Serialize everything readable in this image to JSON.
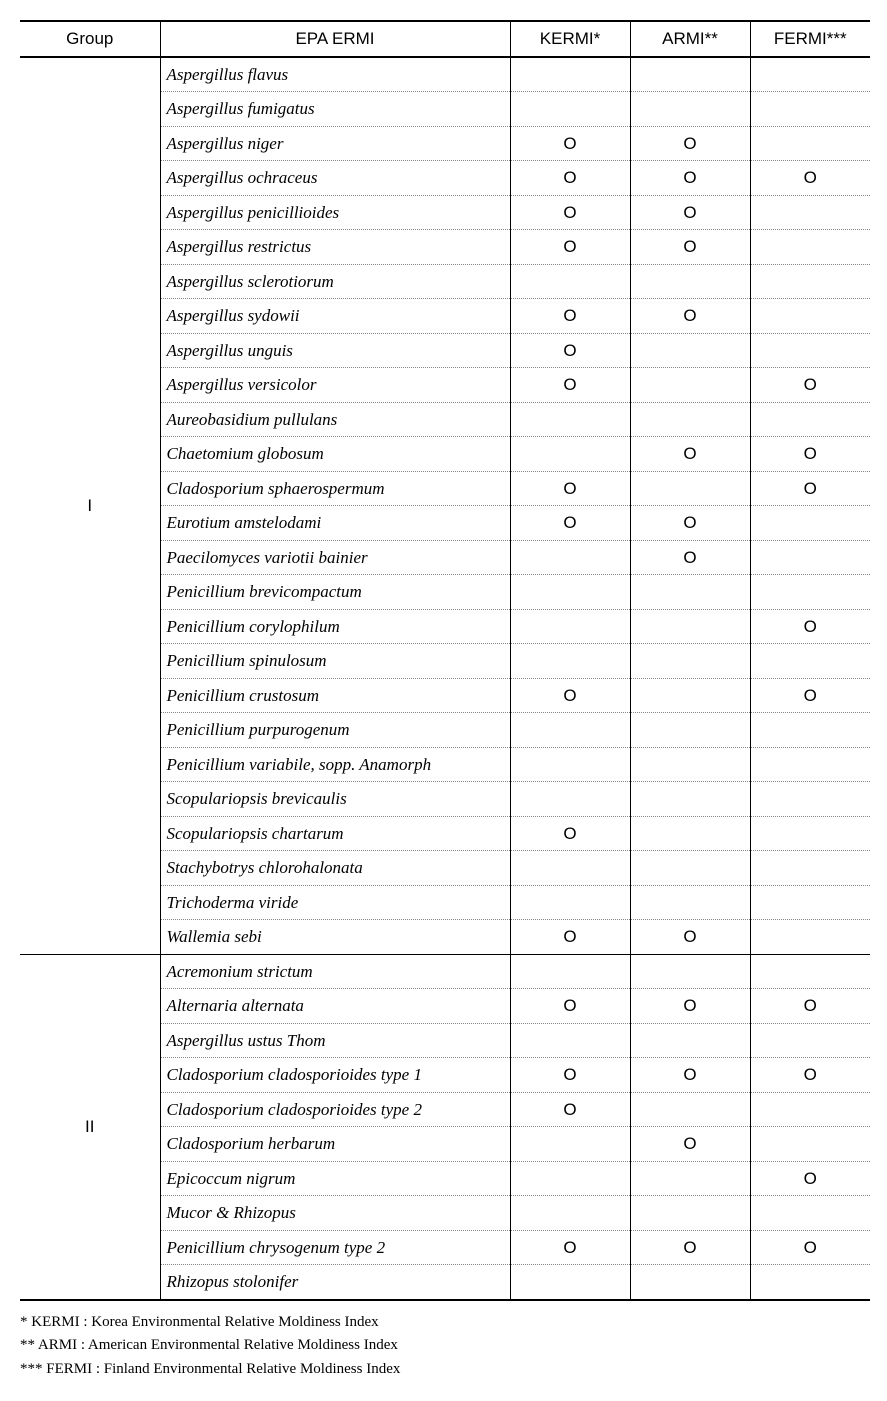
{
  "columns": {
    "group": "Group",
    "epa": "EPA   ERMI",
    "kermi": "KERMI*",
    "armi": "ARMI**",
    "fermi": "FERMI***"
  },
  "col_widths": {
    "group": 140,
    "epa": 350,
    "kermi": 120,
    "armi": 120,
    "fermi": 120
  },
  "groups": [
    {
      "label": "I",
      "rows": [
        {
          "species": "Aspergillus flavus",
          "kermi": "",
          "armi": "",
          "fermi": ""
        },
        {
          "species": "Aspergillus fumigatus",
          "kermi": "",
          "armi": "",
          "fermi": ""
        },
        {
          "species": "Aspergillus niger",
          "kermi": "O",
          "armi": "O",
          "fermi": ""
        },
        {
          "species": "Aspergillus ochraceus",
          "kermi": "O",
          "armi": "O",
          "fermi": "O"
        },
        {
          "species": "Aspergillus penicillioides",
          "kermi": "O",
          "armi": "O",
          "fermi": ""
        },
        {
          "species": "Aspergillus restrictus",
          "kermi": "O",
          "armi": "O",
          "fermi": ""
        },
        {
          "species": "Aspergillus sclerotiorum",
          "kermi": "",
          "armi": "",
          "fermi": ""
        },
        {
          "species": "Aspergillus sydowii",
          "kermi": "O",
          "armi": "O",
          "fermi": ""
        },
        {
          "species": "Aspergillus unguis",
          "kermi": "O",
          "armi": "",
          "fermi": ""
        },
        {
          "species": "Aspergillus versicolor",
          "kermi": "O",
          "armi": "",
          "fermi": "O"
        },
        {
          "species": "Aureobasidium pullulans",
          "kermi": "",
          "armi": "",
          "fermi": ""
        },
        {
          "species": "Chaetomium globosum",
          "kermi": "",
          "armi": "O",
          "fermi": "O"
        },
        {
          "species": "Cladosporium sphaerospermum",
          "kermi": "O",
          "armi": "",
          "fermi": "O"
        },
        {
          "species": "Eurotium amstelodami",
          "kermi": "O",
          "armi": "O",
          "fermi": ""
        },
        {
          "species": "Paecilomyces variotii bainier",
          "kermi": "",
          "armi": "O",
          "fermi": ""
        },
        {
          "species": "Penicillium brevicompactum",
          "kermi": "",
          "armi": "",
          "fermi": ""
        },
        {
          "species": "Penicillium corylophilum",
          "kermi": "",
          "armi": "",
          "fermi": "O"
        },
        {
          "species": "Penicillium spinulosum",
          "kermi": "",
          "armi": "",
          "fermi": ""
        },
        {
          "species": "Penicillium crustosum",
          "kermi": "O",
          "armi": "",
          "fermi": "O"
        },
        {
          "species": "Penicillium purpurogenum",
          "kermi": "",
          "armi": "",
          "fermi": ""
        },
        {
          "species": "Penicillium variabile, sopp. Anamorph",
          "kermi": "",
          "armi": "",
          "fermi": ""
        },
        {
          "species": "Scopulariopsis brevicaulis",
          "kermi": "",
          "armi": "",
          "fermi": ""
        },
        {
          "species": "Scopulariopsis chartarum",
          "kermi": "O",
          "armi": "",
          "fermi": ""
        },
        {
          "species": "Stachybotrys chlorohalonata",
          "kermi": "",
          "armi": "",
          "fermi": ""
        },
        {
          "species": "Trichoderma viride",
          "kermi": "",
          "armi": "",
          "fermi": ""
        },
        {
          "species": "Wallemia sebi",
          "kermi": "O",
          "armi": "O",
          "fermi": ""
        }
      ]
    },
    {
      "label": "II",
      "rows": [
        {
          "species": "Acremonium  strictum",
          "kermi": "",
          "armi": "",
          "fermi": ""
        },
        {
          "species": "Alternaria alternata",
          "kermi": "O",
          "armi": "O",
          "fermi": "O"
        },
        {
          "species": "Aspergillus ustus Thom",
          "kermi": "",
          "armi": "",
          "fermi": ""
        },
        {
          "species": "Cladosporium cladosporioides type 1",
          "kermi": "O",
          "armi": "O",
          "fermi": "O"
        },
        {
          "species": "Cladosporium cladosporioides type 2",
          "kermi": "O",
          "armi": "",
          "fermi": ""
        },
        {
          "species": "Cladosporium herbarum",
          "kermi": "",
          "armi": "O",
          "fermi": ""
        },
        {
          "species": "Epicoccum nigrum",
          "kermi": "",
          "armi": "",
          "fermi": "O"
        },
        {
          "species": "Mucor & Rhizopus",
          "kermi": "",
          "armi": "",
          "fermi": ""
        },
        {
          "species": "Penicillium chrysogenum type 2",
          "kermi": "O",
          "armi": "O",
          "fermi": "O"
        },
        {
          "species": "Rhizopus stolonifer",
          "kermi": "",
          "armi": "",
          "fermi": ""
        }
      ]
    }
  ],
  "footnotes": [
    "*  KERMI : Korea Environmental Relative Moldiness Index",
    "** ARMI : American Environmental Relative Moldiness Index",
    "*** FERMI : Finland Environmental Relative Moldiness Index"
  ]
}
